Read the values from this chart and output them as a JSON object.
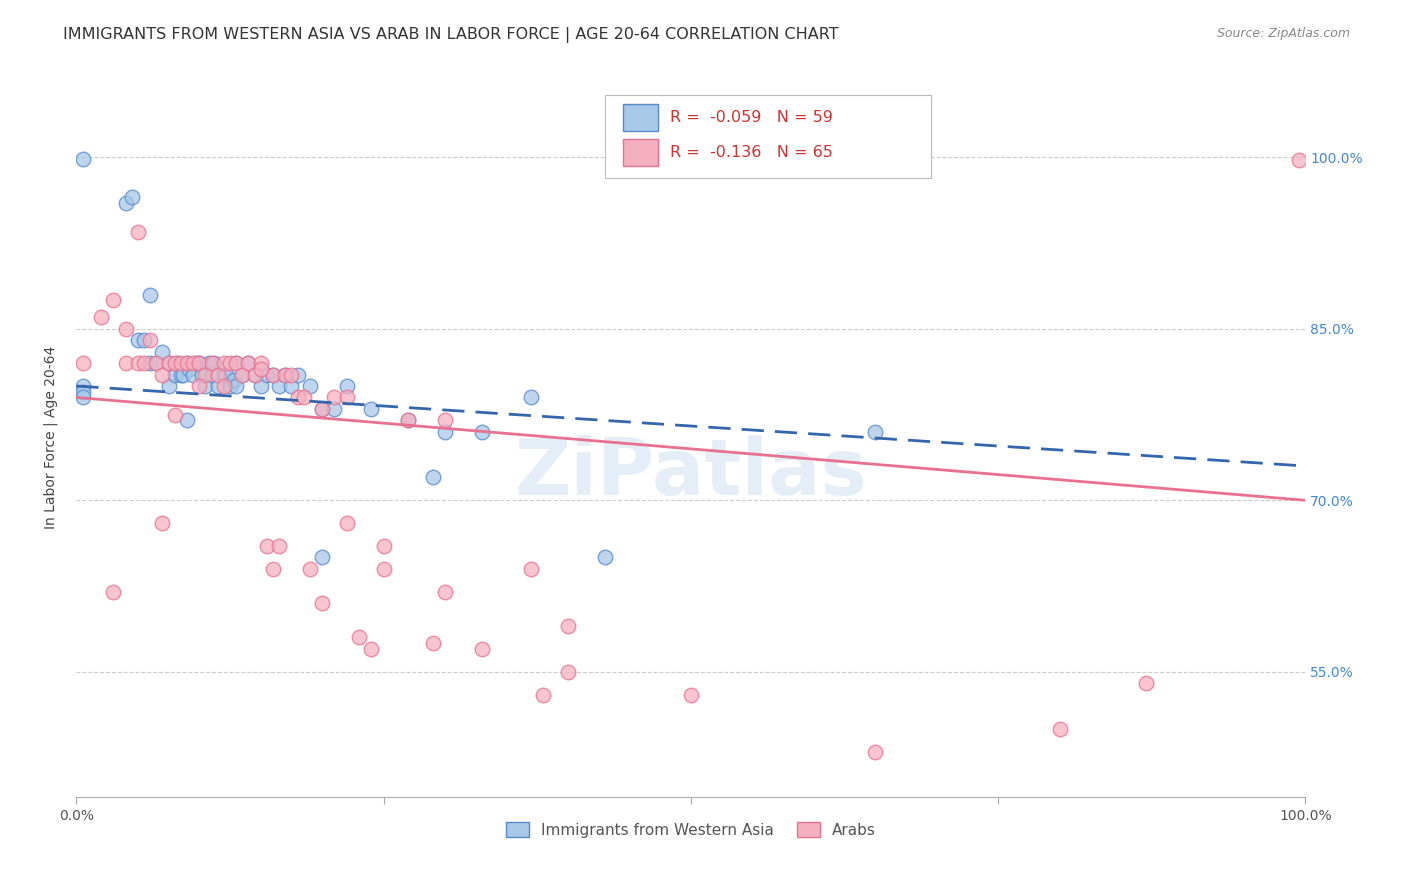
{
  "title": "IMMIGRANTS FROM WESTERN ASIA VS ARAB IN LABOR FORCE | AGE 20-64 CORRELATION CHART",
  "source": "Source: ZipAtlas.com",
  "ylabel": "In Labor Force | Age 20-64",
  "r_blue": -0.059,
  "n_blue": 59,
  "r_pink": -0.136,
  "n_pink": 65,
  "legend_blue": "Immigrants from Western Asia",
  "legend_pink": "Arabs",
  "x_min": 0.0,
  "x_max": 1.0,
  "y_min": 0.44,
  "y_max": 1.07,
  "right_yticks": [
    0.55,
    0.7,
    0.85,
    1.0
  ],
  "right_yticklabels": [
    "55.0%",
    "70.0%",
    "85.0%",
    "100.0%"
  ],
  "color_blue": "#a8c8e8",
  "color_blue_line": "#5588cc",
  "color_blue_line_dark": "#3366aa",
  "color_pink": "#f5b0c0",
  "color_pink_line": "#e87090",
  "background": "#ffffff",
  "grid_color": "#cccccc",
  "blue_line_x0": 0.0,
  "blue_line_x1": 1.0,
  "blue_line_y0": 0.8,
  "blue_line_y1": 0.73,
  "pink_line_x0": 0.0,
  "pink_line_x1": 1.0,
  "pink_line_y0": 0.79,
  "pink_line_y1": 0.7,
  "blue_x": [
    0.005,
    0.04,
    0.045,
    0.05,
    0.055,
    0.06,
    0.065,
    0.07,
    0.075,
    0.075,
    0.08,
    0.082,
    0.085,
    0.087,
    0.09,
    0.092,
    0.095,
    0.098,
    0.1,
    0.102,
    0.105,
    0.108,
    0.11,
    0.112,
    0.115,
    0.12,
    0.122,
    0.125,
    0.128,
    0.13,
    0.135,
    0.14,
    0.145,
    0.15,
    0.155,
    0.16,
    0.165,
    0.17,
    0.175,
    0.18,
    0.19,
    0.2,
    0.21,
    0.22,
    0.24,
    0.27,
    0.3,
    0.33,
    0.37,
    0.06,
    0.09,
    0.13,
    0.2,
    0.29,
    0.43,
    0.65,
    0.005,
    0.005,
    0.005
  ],
  "blue_y": [
    0.999,
    0.96,
    0.965,
    0.84,
    0.84,
    0.82,
    0.82,
    0.83,
    0.82,
    0.8,
    0.81,
    0.82,
    0.81,
    0.81,
    0.82,
    0.815,
    0.81,
    0.82,
    0.82,
    0.81,
    0.8,
    0.82,
    0.81,
    0.82,
    0.8,
    0.81,
    0.81,
    0.8,
    0.805,
    0.82,
    0.81,
    0.82,
    0.81,
    0.8,
    0.81,
    0.81,
    0.8,
    0.81,
    0.8,
    0.81,
    0.8,
    0.78,
    0.78,
    0.8,
    0.78,
    0.77,
    0.76,
    0.76,
    0.79,
    0.88,
    0.77,
    0.8,
    0.65,
    0.72,
    0.65,
    0.76,
    0.8,
    0.795,
    0.79
  ],
  "pink_x": [
    0.995,
    0.005,
    0.02,
    0.03,
    0.04,
    0.04,
    0.05,
    0.055,
    0.06,
    0.065,
    0.07,
    0.075,
    0.08,
    0.085,
    0.09,
    0.095,
    0.1,
    0.105,
    0.11,
    0.115,
    0.12,
    0.125,
    0.13,
    0.135,
    0.14,
    0.145,
    0.15,
    0.155,
    0.16,
    0.165,
    0.17,
    0.175,
    0.18,
    0.185,
    0.19,
    0.2,
    0.21,
    0.22,
    0.23,
    0.24,
    0.25,
    0.27,
    0.3,
    0.33,
    0.37,
    0.4,
    0.05,
    0.08,
    0.12,
    0.16,
    0.2,
    0.25,
    0.3,
    0.4,
    0.87,
    0.03,
    0.07,
    0.1,
    0.15,
    0.22,
    0.29,
    0.38,
    0.5,
    0.65,
    0.8
  ],
  "pink_y": [
    0.998,
    0.82,
    0.86,
    0.875,
    0.85,
    0.82,
    0.82,
    0.82,
    0.84,
    0.82,
    0.81,
    0.82,
    0.82,
    0.82,
    0.82,
    0.82,
    0.82,
    0.81,
    0.82,
    0.81,
    0.82,
    0.82,
    0.82,
    0.81,
    0.82,
    0.81,
    0.82,
    0.66,
    0.81,
    0.66,
    0.81,
    0.81,
    0.79,
    0.79,
    0.64,
    0.78,
    0.79,
    0.79,
    0.58,
    0.57,
    0.64,
    0.77,
    0.77,
    0.57,
    0.64,
    0.59,
    0.935,
    0.775,
    0.8,
    0.64,
    0.61,
    0.66,
    0.62,
    0.55,
    0.54,
    0.62,
    0.68,
    0.8,
    0.815,
    0.68,
    0.575,
    0.53,
    0.53,
    0.48,
    0.5
  ],
  "watermark": "ZiPatlas",
  "title_fontsize": 11.5,
  "axis_label_fontsize": 10,
  "tick_fontsize": 10,
  "legend_fontsize": 11.5
}
